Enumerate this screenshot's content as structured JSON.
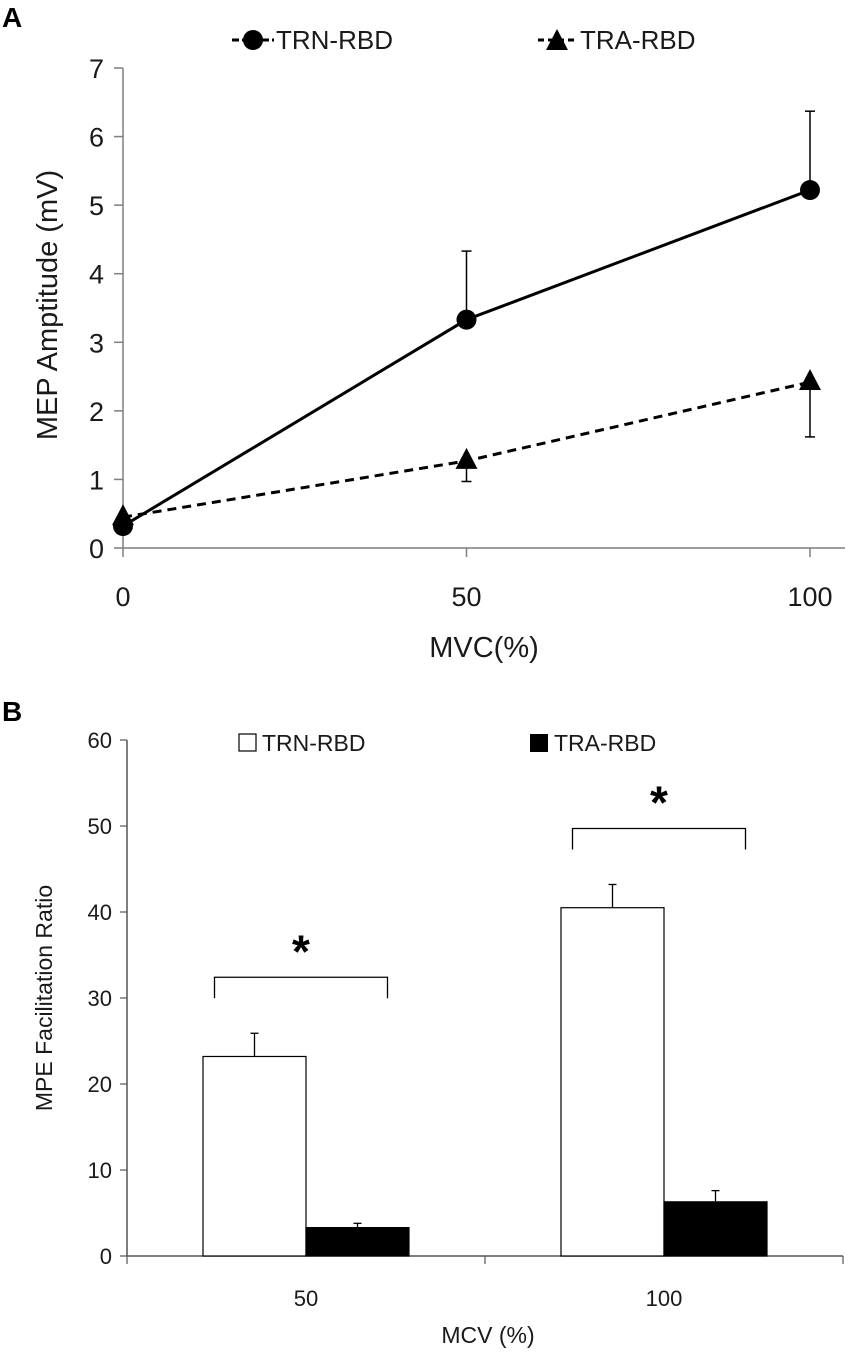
{
  "chart_data": [
    {
      "panel": "A",
      "type": "line",
      "title": "",
      "xlabel": "MVC(%)",
      "ylabel": "MEP Amptitude (mV)",
      "x": [
        0,
        50,
        100
      ],
      "xlim": [
        0,
        105
      ],
      "ylim": [
        0,
        7
      ],
      "x_ticks": [
        0,
        50,
        100
      ],
      "y_ticks": [
        0,
        1,
        2,
        3,
        4,
        5,
        6,
        7
      ],
      "grid": false,
      "legend_position": "top",
      "series": [
        {
          "name": "TRN-RBD",
          "marker": "circle",
          "line": "solid",
          "values": [
            0.32,
            3.33,
            5.22
          ],
          "error_up": [
            0,
            1.0,
            1.15
          ]
        },
        {
          "name": "TRA-RBD",
          "marker": "triangle",
          "line": "dashed",
          "values": [
            0.45,
            1.27,
            2.42
          ],
          "error_down": [
            0,
            0.3,
            0.8
          ]
        }
      ]
    },
    {
      "panel": "B",
      "type": "bar",
      "title": "",
      "xlabel": "MCV (%)",
      "ylabel": "MPE Facilitation Ratio",
      "categories": [
        "50",
        "100"
      ],
      "ylim": [
        0,
        60
      ],
      "y_ticks": [
        0,
        10,
        20,
        30,
        40,
        50,
        60
      ],
      "grid": false,
      "legend_position": "top",
      "series": [
        {
          "name": "TRN-RBD",
          "fill": "white",
          "values": [
            23.2,
            40.5
          ],
          "error_up": [
            2.7,
            2.7
          ]
        },
        {
          "name": "TRA-RBD",
          "fill": "black",
          "values": [
            3.3,
            6.3
          ],
          "error_up": [
            0.5,
            1.3
          ]
        }
      ],
      "significance": [
        {
          "category": "50",
          "label": "*"
        },
        {
          "category": "100",
          "label": "*"
        }
      ]
    }
  ]
}
